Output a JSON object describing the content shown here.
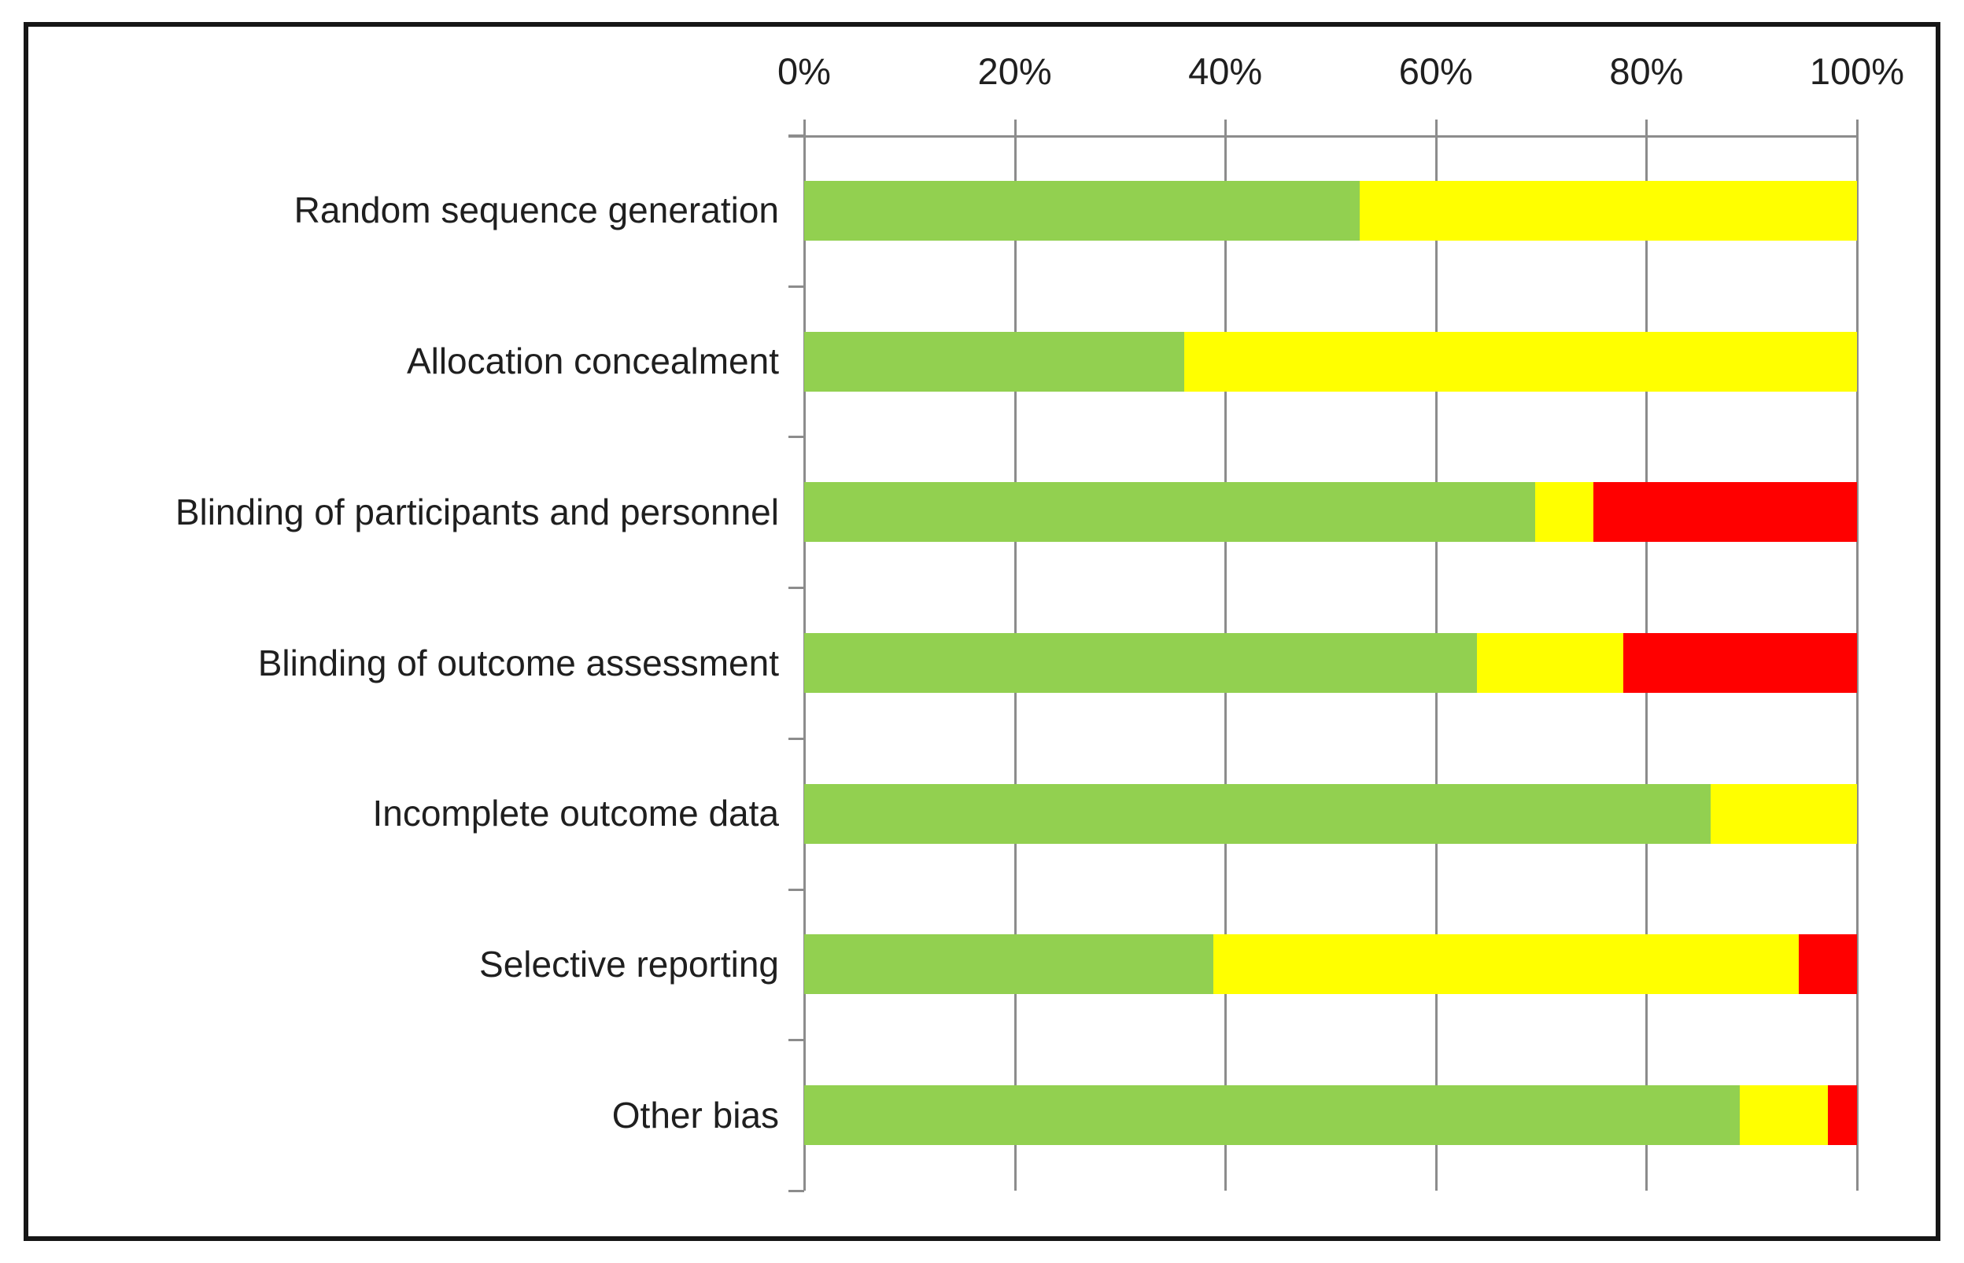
{
  "chart_data": {
    "type": "bar",
    "subtype": "horizontal-stacked-100-percent",
    "title": "",
    "xlabel": "",
    "ylabel": "",
    "x_ticks": [
      "0%",
      "20%",
      "40%",
      "60%",
      "80%",
      "100%"
    ],
    "xlim": [
      0,
      100
    ],
    "grid": "vertical gridlines at 20% intervals",
    "legend_position": "none",
    "categories": [
      "Random sequence generation",
      "Allocation concealment",
      "Blinding of participants and personnel",
      "Blinding of outcome assessment",
      "Incomplete outcome data",
      "Selective reporting",
      "Other bias"
    ],
    "series": [
      {
        "name": "green",
        "color": "#92D050",
        "values": [
          52.8,
          36.1,
          69.4,
          63.9,
          86.1,
          38.9,
          88.9
        ]
      },
      {
        "name": "yellow",
        "color": "#FFFF00",
        "values": [
          47.2,
          63.9,
          5.6,
          13.9,
          13.9,
          55.6,
          8.3
        ]
      },
      {
        "name": "red",
        "color": "#FF0000",
        "values": [
          0,
          0,
          25.0,
          22.2,
          0,
          5.6,
          2.8
        ]
      }
    ],
    "colors": {
      "green_segment": "#92D050",
      "yellow_segment": "#FFFF00",
      "red_segment": "#FF0000",
      "gridline": "#8C8C8C",
      "frame_border": "#161616",
      "text": "#1F1F1F",
      "background": "#FFFFFF"
    }
  }
}
